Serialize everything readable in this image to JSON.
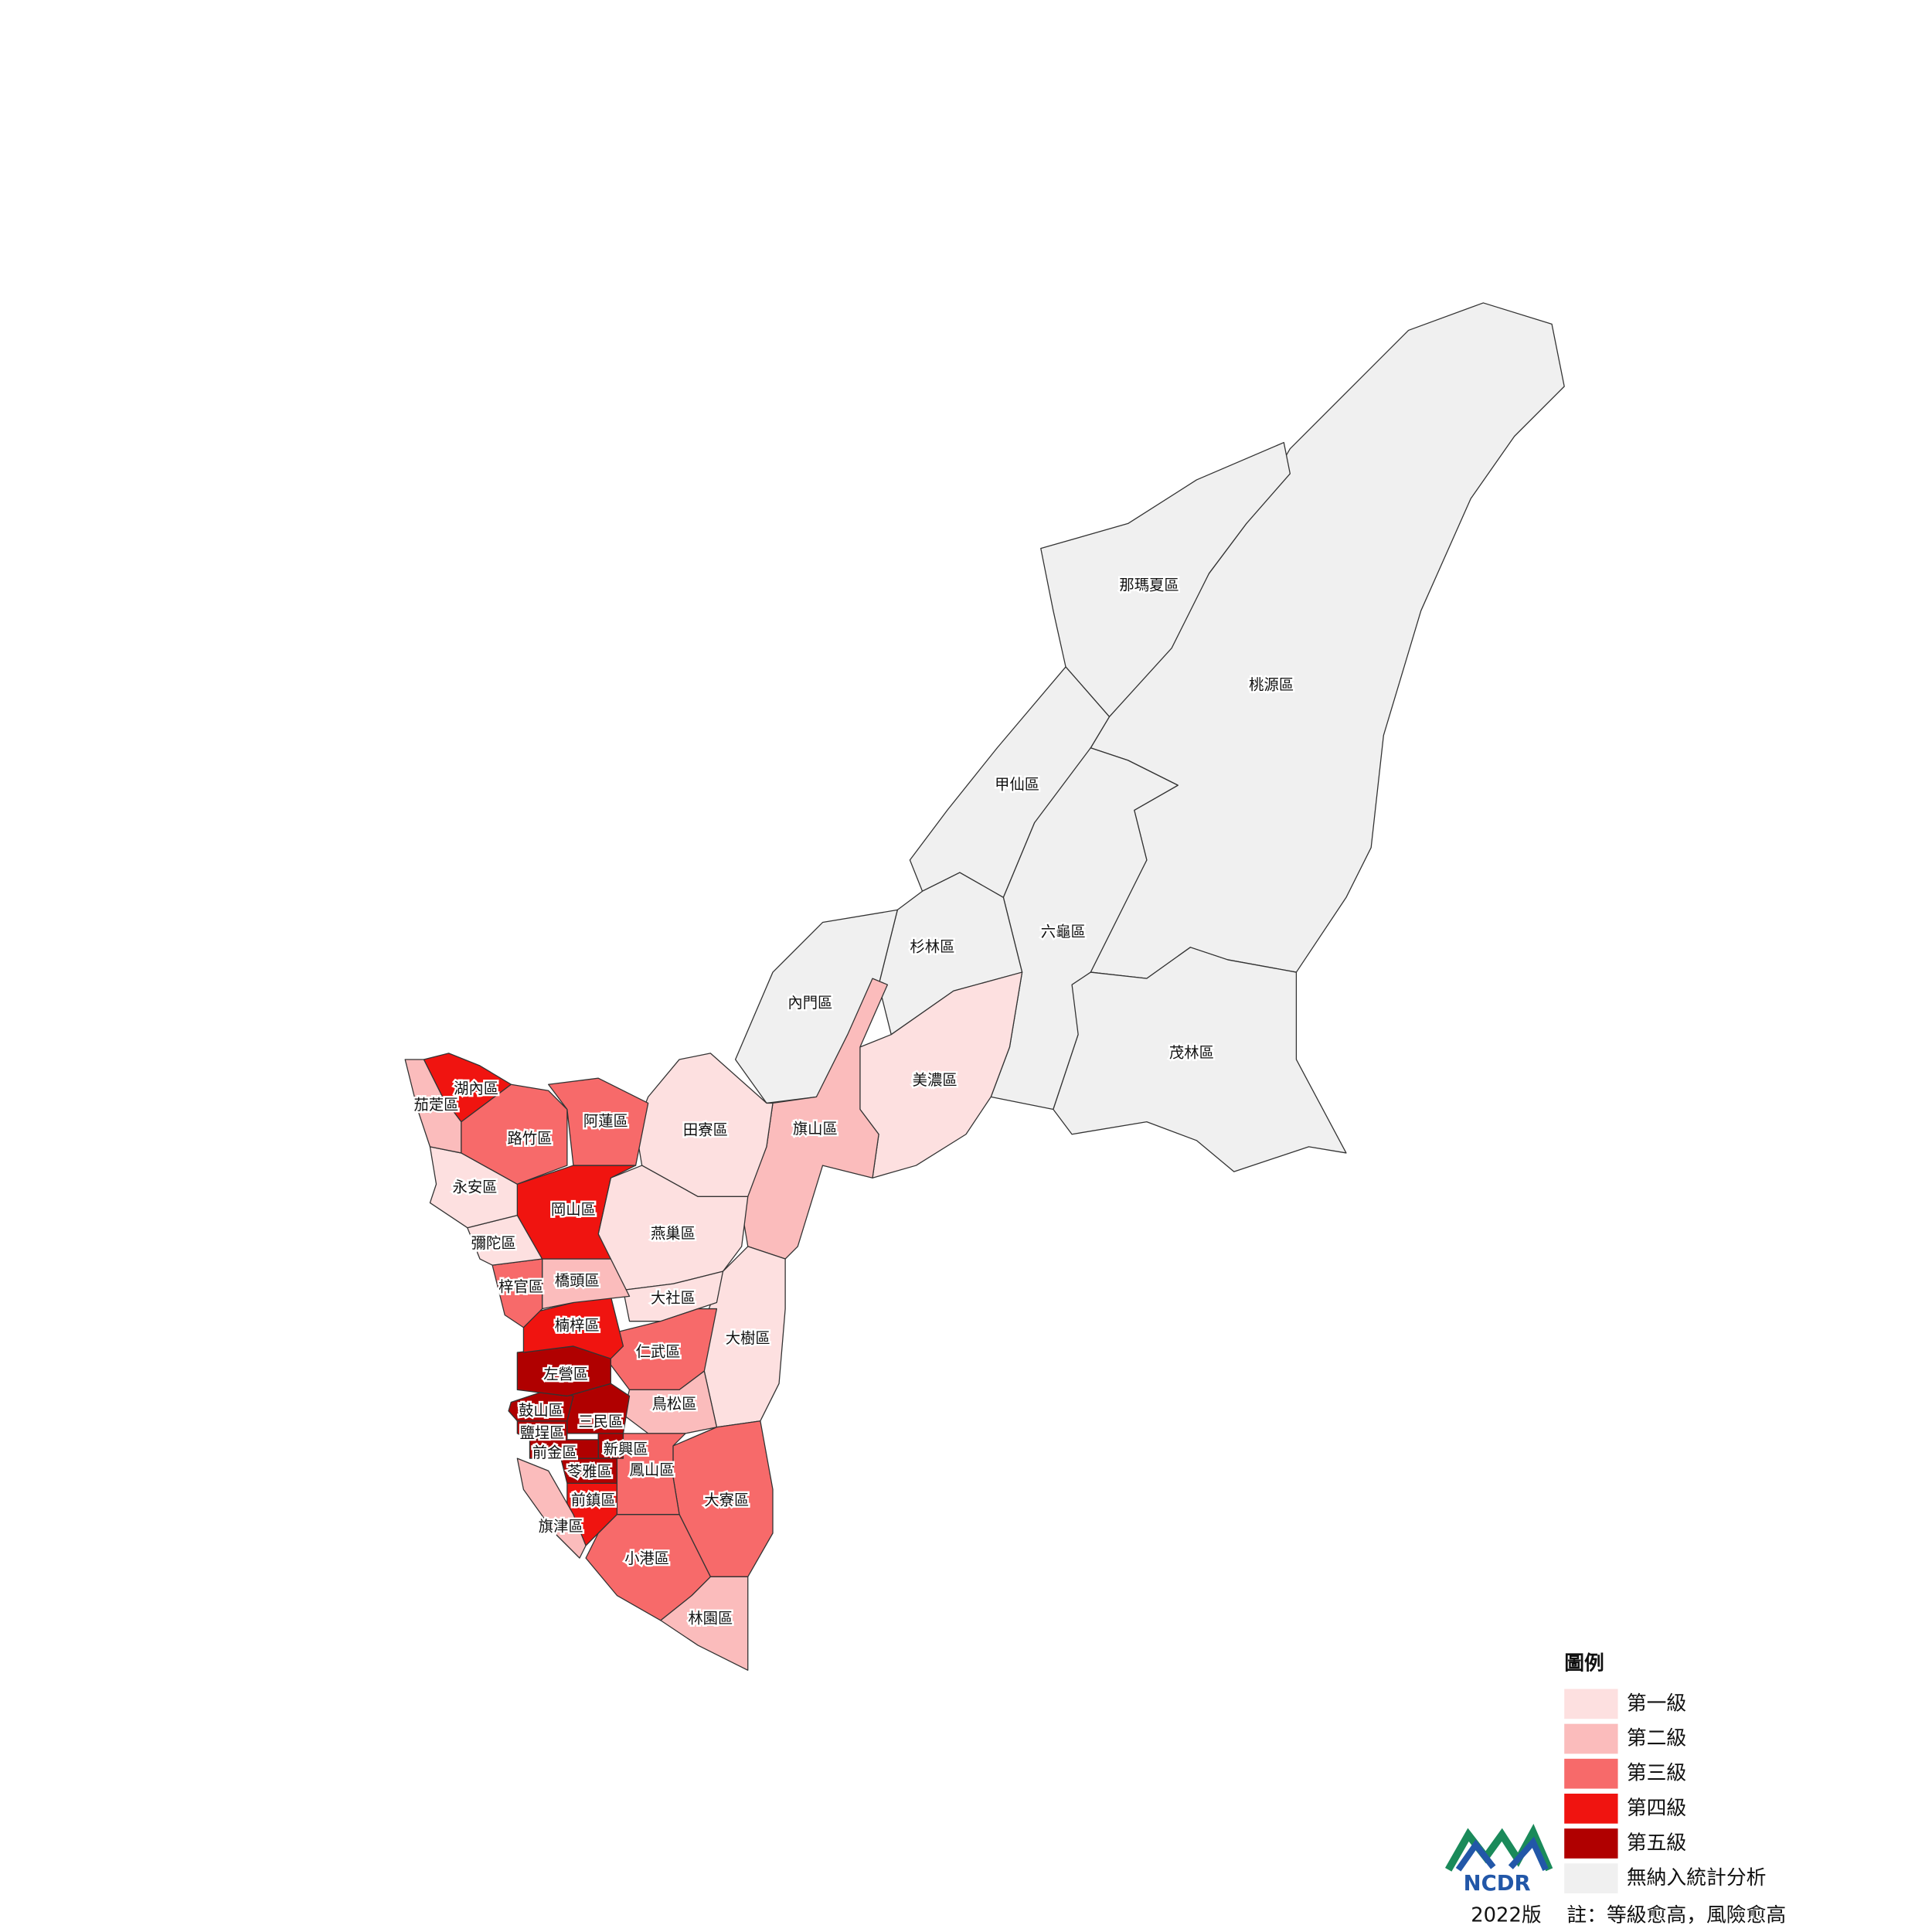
{
  "legend": {
    "title": "圖例",
    "items": [
      {
        "label": "第一級",
        "color": "#fde0e0"
      },
      {
        "label": "第二級",
        "color": "#fbbcbc"
      },
      {
        "label": "第三級",
        "color": "#f76a6a"
      },
      {
        "label": "第四級",
        "color": "#f01410"
      },
      {
        "label": "第五級",
        "color": "#b00000"
      },
      {
        "label": "無納入統計分析",
        "color": "#f0f0f0"
      }
    ]
  },
  "districts": [
    {
      "name": "桃源區",
      "legend_item": 5
    },
    {
      "name": "那瑪夏區",
      "legend_item": 5
    },
    {
      "name": "甲仙區",
      "legend_item": 5
    },
    {
      "name": "六龜區",
      "legend_item": 5
    },
    {
      "name": "杉林區",
      "legend_item": 5
    },
    {
      "name": "內門區",
      "legend_item": 5
    },
    {
      "name": "茂林區",
      "legend_item": 5
    },
    {
      "name": "美濃區",
      "legend_item": 0
    },
    {
      "name": "旗山區",
      "legend_item": 1
    },
    {
      "name": "田寮區",
      "legend_item": 0
    },
    {
      "name": "燕巢區",
      "legend_item": 0
    },
    {
      "name": "大樹區",
      "legend_item": 0
    },
    {
      "name": "大社區",
      "legend_item": 0
    },
    {
      "name": "仁武區",
      "legend_item": 2
    },
    {
      "name": "鳥松區",
      "legend_item": 1
    },
    {
      "name": "大寮區",
      "legend_item": 2
    },
    {
      "name": "林園區",
      "legend_item": 1
    },
    {
      "name": "小港區",
      "legend_item": 2
    },
    {
      "name": "鳳山區",
      "legend_item": 2
    },
    {
      "name": "前鎮區",
      "legend_item": 3
    },
    {
      "name": "旗津區",
      "legend_item": 1
    },
    {
      "name": "苓雅區",
      "legend_item": 4
    },
    {
      "name": "新興區",
      "legend_item": 4
    },
    {
      "name": "前金區",
      "legend_item": 4
    },
    {
      "name": "鹽埕區",
      "legend_item": 4
    },
    {
      "name": "三民區",
      "legend_item": 4
    },
    {
      "name": "鼓山區",
      "legend_item": 4
    },
    {
      "name": "左營區",
      "legend_item": 4
    },
    {
      "name": "楠梓區",
      "legend_item": 3
    },
    {
      "name": "橋頭區",
      "legend_item": 1
    },
    {
      "name": "梓官區",
      "legend_item": 2
    },
    {
      "name": "彌陀區",
      "legend_item": 0
    },
    {
      "name": "岡山區",
      "legend_item": 3
    },
    {
      "name": "永安區",
      "legend_item": 0
    },
    {
      "name": "路竹區",
      "legend_item": 2
    },
    {
      "name": "阿蓮區",
      "legend_item": 2
    },
    {
      "name": "湖內區",
      "legend_item": 3
    },
    {
      "name": "茄萣區",
      "legend_item": 1
    }
  ],
  "logo": {
    "text": "NCDR"
  },
  "footer": {
    "edition": "2022版",
    "note": "註：等級愈高，風險愈高"
  }
}
